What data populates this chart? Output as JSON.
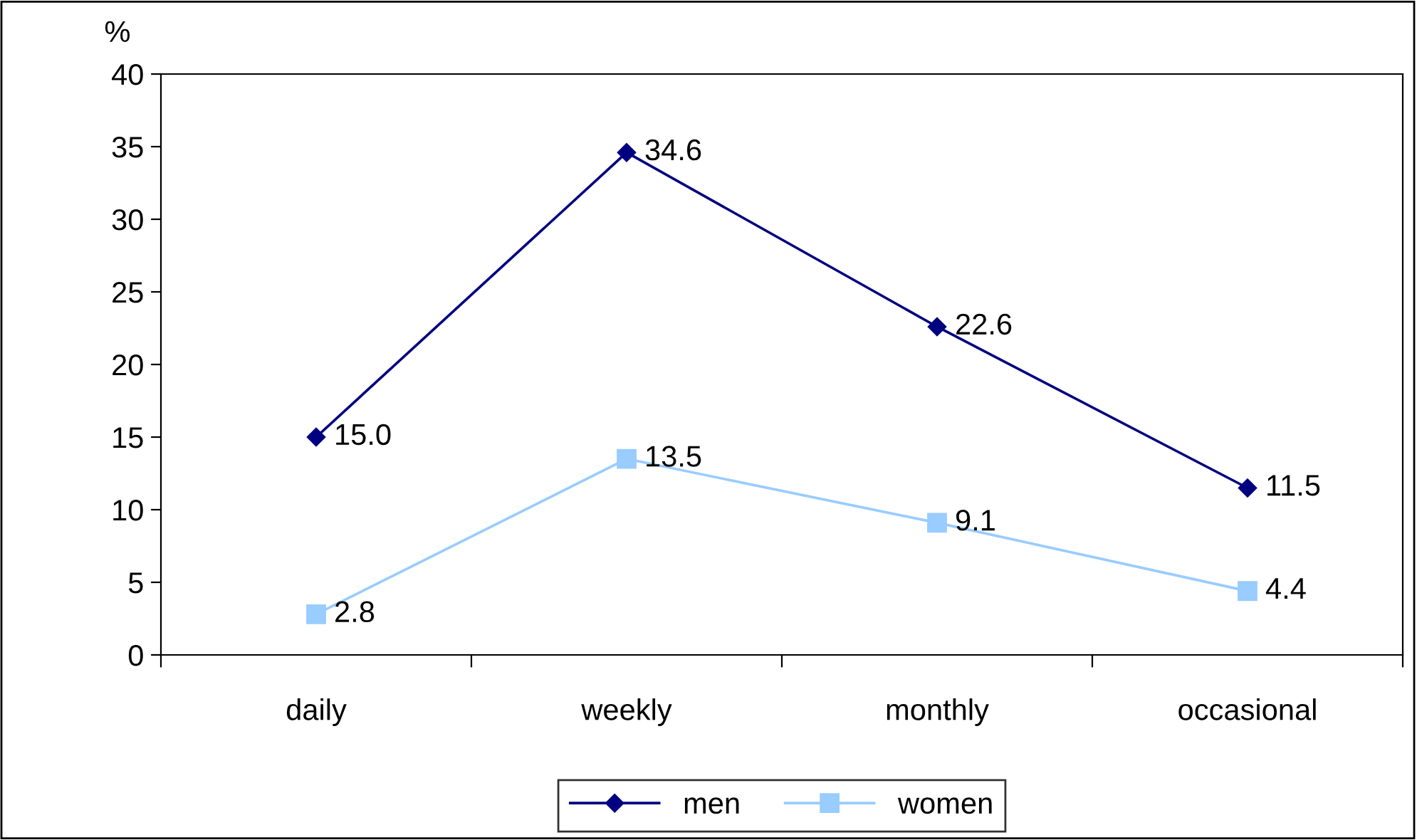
{
  "chart_data": {
    "type": "line",
    "ylabel": "%",
    "categories": [
      "daily",
      "weekly",
      "monthly",
      "occasional"
    ],
    "series": [
      {
        "name": "men",
        "color": "#000080",
        "marker": "diamond",
        "values": [
          15.0,
          34.6,
          22.6,
          11.5
        ],
        "value_labels": [
          "15.0",
          "34.6",
          "22.6",
          "11.5"
        ]
      },
      {
        "name": "women",
        "color": "#99ccff",
        "marker": "square",
        "values": [
          2.8,
          13.5,
          9.1,
          4.4
        ],
        "value_labels": [
          "2.8",
          "13.5",
          "9.1",
          "4.4"
        ]
      }
    ],
    "ylim": [
      0,
      40
    ],
    "yticks": [
      0,
      5,
      10,
      15,
      20,
      25,
      30,
      35,
      40
    ],
    "grid": false,
    "legend": "bottom",
    "line_style": "solid"
  }
}
